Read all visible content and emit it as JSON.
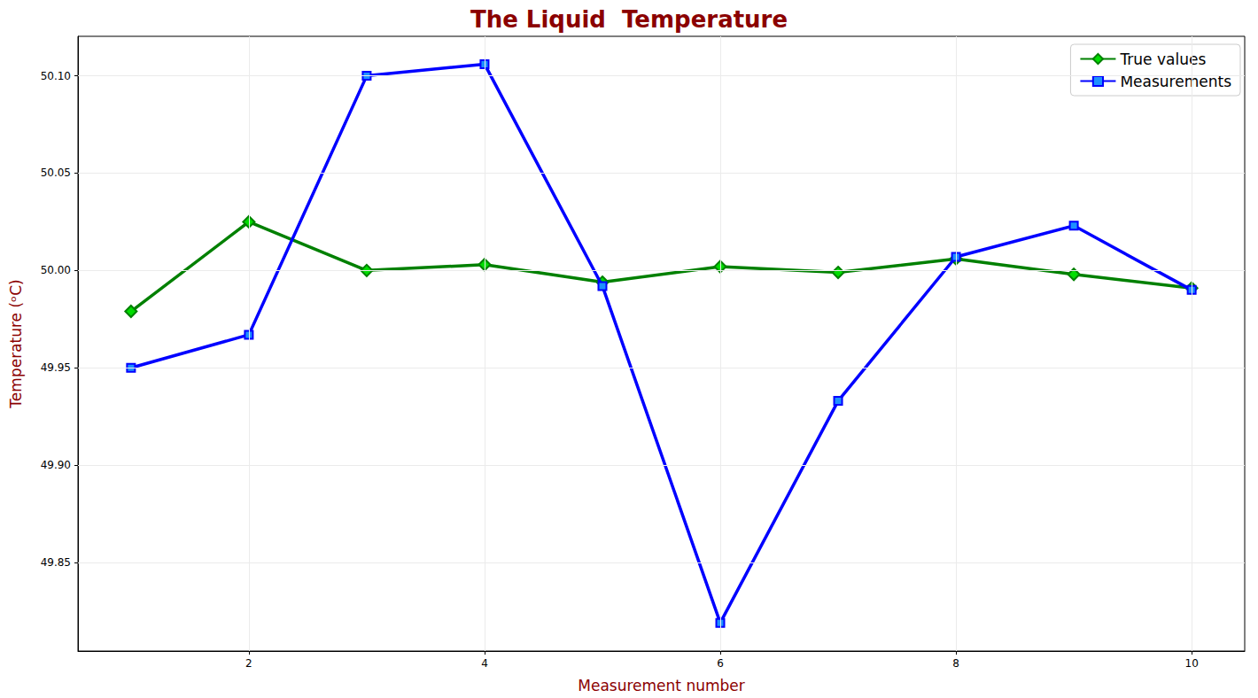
{
  "chart_data": {
    "type": "line",
    "title": "The Liquid  Temperature",
    "x_label": "Measurement number",
    "y_label": "Temperature (ᵒC)",
    "x": [
      1,
      2,
      3,
      4,
      5,
      6,
      7,
      8,
      9,
      10
    ],
    "series": [
      {
        "name": "True values",
        "color": "#008000",
        "marker": "diamond",
        "line_style": "solid",
        "values": [
          49.979,
          50.025,
          50.0,
          50.003,
          49.994,
          50.002,
          49.999,
          50.006,
          49.998,
          49.991
        ]
      },
      {
        "name": "Measurements",
        "color": "#0000ff",
        "marker": "square",
        "line_style": "solid",
        "values": [
          49.95,
          49.967,
          50.1,
          50.106,
          49.992,
          49.819,
          49.933,
          50.007,
          50.023,
          49.99
        ]
      }
    ],
    "xlim": [
      0.55,
      10.45
    ],
    "xticks": [
      2,
      4,
      6,
      8,
      10
    ],
    "ylim": [
      49.8045,
      50.1203
    ],
    "yticks": [
      49.85,
      {
        "value": 49.9,
        "label": "49.90"
      },
      49.95,
      {
        "value": 50,
        "label": "50.00"
      },
      50.05,
      {
        "value": 50.1,
        "label": "50.10"
      }
    ],
    "grid": true,
    "legend": "upper right"
  }
}
